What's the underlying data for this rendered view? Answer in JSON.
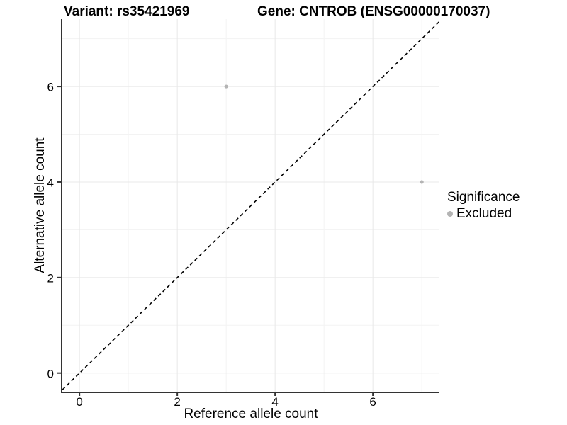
{
  "chart_data": {
    "type": "scatter",
    "titles": {
      "left": "Variant: rs35421969",
      "right": "Gene: CNTROB (ENSG00000170037)"
    },
    "xlabel": "Reference allele count",
    "ylabel": "Alternative allele count",
    "xlim": [
      -0.35,
      7.36
    ],
    "ylim": [
      -0.39,
      7.41
    ],
    "x_major_ticks": [
      0,
      2,
      4,
      6
    ],
    "y_major_ticks": [
      0,
      2,
      4,
      6
    ],
    "x_minor_ticks": [
      1,
      3,
      5,
      7
    ],
    "y_minor_ticks": [
      1,
      3,
      5,
      7
    ],
    "grid": "on",
    "series": [
      {
        "name": "Excluded",
        "color": "#b4b4b4",
        "points": [
          {
            "x": 3,
            "y": 6
          },
          {
            "x": 7,
            "y": 4
          }
        ]
      }
    ],
    "reference_line": {
      "slope": 1,
      "intercept": 0,
      "style": "dashed",
      "color": "#000000"
    },
    "legend": {
      "title": "Significance",
      "position": "right",
      "items": [
        {
          "label": "Excluded",
          "color": "#b4b4b4"
        }
      ]
    },
    "colors": {
      "background": "#ffffff",
      "axis_line": "#333333",
      "grid_major": "#e8e8e8",
      "grid_minor": "#f3f3f3",
      "tick_mark": "#333333",
      "text": "#000000"
    },
    "point_radius_px": 2.6,
    "legend_key_radius_px": 4
  }
}
